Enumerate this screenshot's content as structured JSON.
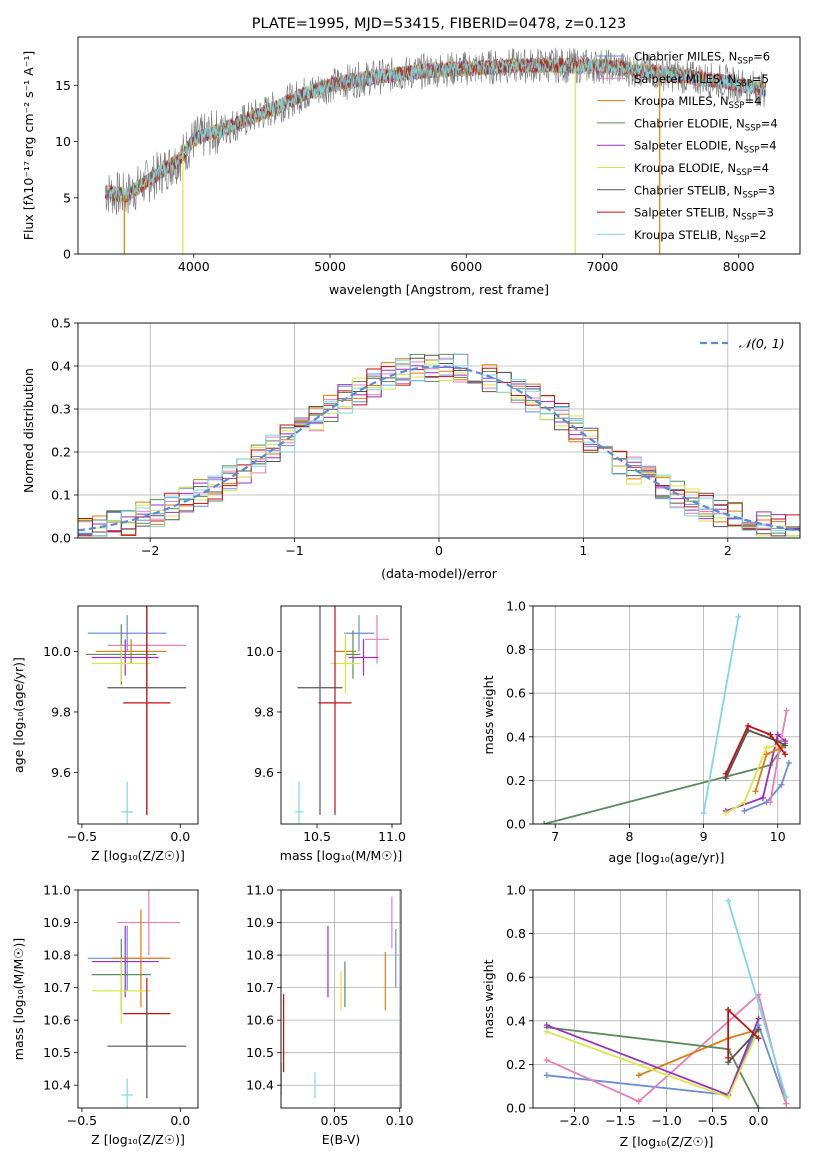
{
  "chart_data": [
    {
      "id": "spectrum",
      "type": "line",
      "title": "PLATE=1995, MJD=53415, FIBERID=0478, z=0.123",
      "xlabel": "wavelength [Angstrom, rest frame]",
      "ylabel": "Flux [fλ10⁻¹⁷ erg cm⁻² s⁻¹ A⁻¹]",
      "xlim": [
        3150,
        8450
      ],
      "ylim": [
        0,
        19.3
      ],
      "xticks": [
        4000,
        5000,
        6000,
        7000,
        8000
      ],
      "yticks": [
        0,
        5,
        10,
        15
      ],
      "grid": false,
      "legend_position": "top-right",
      "spectrum_range": [
        3350,
        8200
      ],
      "continuum": {
        "x": [
          3350,
          3500,
          3700,
          3900,
          4000,
          4200,
          4400,
          4600,
          4800,
          5000,
          5200,
          5500,
          5800,
          6000,
          6300,
          6600,
          7000,
          7300,
          7600,
          7900,
          8200
        ],
        "y": [
          5.5,
          5.2,
          6.8,
          8.5,
          10.2,
          11.0,
          12.0,
          13.0,
          14.2,
          15.0,
          15.5,
          16.0,
          16.4,
          16.5,
          16.7,
          16.8,
          16.7,
          16.3,
          15.8,
          15.3,
          14.6
        ]
      },
      "series": [
        {
          "label": "Chabrier MILES, N_SSP=6",
          "color": "#6b8fd6"
        },
        {
          "label": "Salpeter MILES, N_SSP=5",
          "color": "#e87fb5"
        },
        {
          "label": "Kroupa MILES, N_SSP=4",
          "color": "#e07d10"
        },
        {
          "label": "Chabrier ELODIE, N_SSP=4",
          "color": "#5c8a5c"
        },
        {
          "label": "Salpeter ELODIE, N_SSP=4",
          "color": "#9b30c0"
        },
        {
          "label": "Kroupa ELODIE, N_SSP=4",
          "color": "#d8e84a"
        },
        {
          "label": "Chabrier STELIB, N_SSP=3",
          "color": "#555555"
        },
        {
          "label": "Salpeter STELIB, N_SSP=3",
          "color": "#c01010"
        },
        {
          "label": "Kroupa STELIB, N_SSP=2",
          "color": "#7fd8e0"
        }
      ],
      "legend": [
        {
          "pre": "Chabrier MILES, N",
          "sub": "SSP",
          "post": "=6"
        },
        {
          "pre": "Salpeter MILES, N",
          "sub": "SSP",
          "post": "=5"
        },
        {
          "pre": "Kroupa MILES, N",
          "sub": "SSP",
          "post": "=4"
        },
        {
          "pre": "Chabrier ELODIE, N",
          "sub": "SSP",
          "post": "=4"
        },
        {
          "pre": "Salpeter ELODIE, N",
          "sub": "SSP",
          "post": "=4"
        },
        {
          "pre": "Kroupa ELODIE, N",
          "sub": "SSP",
          "post": "=4"
        },
        {
          "pre": "Chabrier STELIB, N",
          "sub": "SSP",
          "post": "=3"
        },
        {
          "pre": "Salpeter STELIB, N",
          "sub": "SSP",
          "post": "=3"
        },
        {
          "pre": "Kroupa STELIB, N",
          "sub": "SSP",
          "post": "=2"
        }
      ],
      "dropouts": [
        {
          "x": 3490,
          "color": "#e07d10"
        },
        {
          "x": 3920,
          "color": "#d8e84a"
        },
        {
          "x": 6800,
          "color": "#d8e84a"
        },
        {
          "x": 7420,
          "color": "#e07d10"
        }
      ]
    },
    {
      "id": "residuals",
      "type": "histogram",
      "xlabel": "(data-model)/error",
      "ylabel": "Normed distribution",
      "xlim": [
        -2.5,
        2.5
      ],
      "ylim": [
        0,
        0.5
      ],
      "xticks": [
        -2,
        -1,
        0,
        1,
        2
      ],
      "xticklabels": [
        "−2",
        "−1",
        "0",
        "1",
        "2"
      ],
      "yticks": [
        0.0,
        0.1,
        0.2,
        0.3,
        0.4,
        0.5
      ],
      "yticklabels": [
        "0.0",
        "0.1",
        "0.2",
        "0.3",
        "0.4",
        "0.5"
      ],
      "grid": true,
      "bin_width": 0.1,
      "reference_curve": {
        "label": "𝒩(0, 1)",
        "color": "#5b8bd8",
        "style": "dashed"
      },
      "legend_position": "top-right"
    },
    {
      "id": "age-vs-Z",
      "type": "errorbar",
      "xlabel": "Z [log₁₀(Z/Z☉)]",
      "ylabel": "age  [log₁₀(age/yr)]",
      "xlim": [
        -0.52,
        0.09
      ],
      "ylim": [
        9.43,
        10.15
      ],
      "xticks": [
        -0.5,
        0.0
      ],
      "xticklabels": [
        "−0.5",
        "0.0"
      ],
      "yticks": [
        9.6,
        9.8,
        10.0
      ],
      "yticklabels": [
        "9.6",
        "9.8",
        "10.0"
      ],
      "points": [
        {
          "color": "#6b8fd6",
          "x": -0.27,
          "xerr": 0.2,
          "y": 10.06,
          "yerr": 0.06
        },
        {
          "color": "#e87fb5",
          "x": -0.17,
          "xerr": 0.2,
          "y": 10.02,
          "yerr": 0.08
        },
        {
          "color": "#e07d10",
          "x": -0.25,
          "xerr": 0.18,
          "y": 10.0,
          "yerr": 0.04
        },
        {
          "color": "#5c8a5c",
          "x": -0.3,
          "xerr": 0.18,
          "y": 9.99,
          "yerr": 0.1
        },
        {
          "color": "#9b30c0",
          "x": -0.28,
          "xerr": 0.17,
          "y": 9.98,
          "yerr": 0.06
        },
        {
          "color": "#d8e84a",
          "x": -0.3,
          "xerr": 0.15,
          "y": 9.96,
          "yerr": 0.06
        },
        {
          "color": "#555555",
          "x": -0.17,
          "xerr": 0.2,
          "y": 9.88,
          "yerr": 0.42
        },
        {
          "color": "#c01010",
          "x": -0.17,
          "xerr": 0.12,
          "y": 9.83,
          "yerr": 0.37
        },
        {
          "color": "#7fd8e0",
          "x": -0.27,
          "xerr": 0.03,
          "y": 9.47,
          "yerr": 0.1
        }
      ]
    },
    {
      "id": "age-vs-mass",
      "type": "errorbar",
      "xlabel": "mass [log₁₀(M/M☉)]",
      "ylabel": "",
      "xlim": [
        10.26,
        11.06
      ],
      "ylim": [
        9.43,
        10.15
      ],
      "xticks": [
        10.5,
        11.0
      ],
      "xticklabels": [
        "10.5",
        "11.0"
      ],
      "yticks": [
        9.6,
        9.8,
        10.0
      ],
      "yticklabels": [
        "9.6",
        "9.8",
        "10.0"
      ],
      "points": [
        {
          "color": "#6b8fd6",
          "x": 10.78,
          "xerr": 0.1,
          "y": 10.06,
          "yerr": 0.06
        },
        {
          "color": "#e87fb5",
          "x": 10.9,
          "xerr": 0.08,
          "y": 10.04,
          "yerr": 0.08
        },
        {
          "color": "#e07d10",
          "x": 10.69,
          "xerr": 0.07,
          "y": 10.0,
          "yerr": 0.04
        },
        {
          "color": "#5c8a5c",
          "x": 10.74,
          "xerr": 0.05,
          "y": 9.99,
          "yerr": 0.08
        },
        {
          "color": "#9b30c0",
          "x": 10.81,
          "xerr": 0.1,
          "y": 9.98,
          "yerr": 0.06
        },
        {
          "color": "#d8e84a",
          "x": 10.69,
          "xerr": 0.1,
          "y": 9.96,
          "yerr": 0.1
        },
        {
          "color": "#555555",
          "x": 10.52,
          "xerr": 0.15,
          "y": 9.88,
          "yerr": 0.42
        },
        {
          "color": "#c01010",
          "x": 10.62,
          "xerr": 0.11,
          "y": 9.83,
          "yerr": 0.37
        },
        {
          "color": "#7fd8e0",
          "x": 10.38,
          "xerr": 0.03,
          "y": 9.47,
          "yerr": 0.1
        }
      ]
    },
    {
      "id": "weight-vs-age",
      "type": "line",
      "xlabel": "age  [log₁₀(age/yr)]",
      "ylabel": "mass weight",
      "xlim": [
        6.7,
        10.3
      ],
      "ylim": [
        0.0,
        1.0
      ],
      "xticks": [
        7,
        8,
        9,
        10
      ],
      "xticklabels": [
        "7",
        "8",
        "9",
        "10"
      ],
      "yticks": [
        0.0,
        0.2,
        0.4,
        0.6,
        0.8,
        1.0
      ],
      "yticklabels": [
        "0.0",
        "0.2",
        "0.4",
        "0.6",
        "0.8",
        "1.0"
      ],
      "grid": true,
      "series": [
        {
          "color": "#5c8a5c",
          "x": [
            6.85,
            9.9,
            10.1
          ],
          "y": [
            0.0,
            0.27,
            0.37
          ]
        },
        {
          "color": "#7fd8e0",
          "x": [
            9.0,
            9.47
          ],
          "y": [
            0.05,
            0.95
          ]
        },
        {
          "color": "#9b30c0",
          "x": [
            9.3,
            9.8,
            10.0,
            10.1
          ],
          "y": [
            0.06,
            0.12,
            0.41,
            0.38
          ]
        },
        {
          "color": "#d8e84a",
          "x": [
            9.3,
            9.55,
            9.85,
            10.0
          ],
          "y": [
            0.05,
            0.1,
            0.35,
            0.36
          ]
        },
        {
          "color": "#6b8fd6",
          "x": [
            9.55,
            9.85,
            10.05,
            10.15
          ],
          "y": [
            0.06,
            0.1,
            0.18,
            0.28
          ]
        },
        {
          "color": "#e87fb5",
          "x": [
            9.9,
            10.0,
            10.12
          ],
          "y": [
            0.1,
            0.3,
            0.52
          ]
        },
        {
          "color": "#e07d10",
          "x": [
            9.7,
            9.85,
            10.05
          ],
          "y": [
            0.15,
            0.32,
            0.35
          ]
        },
        {
          "color": "#555555",
          "x": [
            9.3,
            9.6,
            10.0,
            10.1
          ],
          "y": [
            0.21,
            0.43,
            0.38,
            0.36
          ]
        },
        {
          "color": "#c01010",
          "x": [
            9.3,
            9.6,
            9.9,
            10.1
          ],
          "y": [
            0.23,
            0.45,
            0.41,
            0.32
          ]
        }
      ]
    },
    {
      "id": "mass-vs-Z",
      "type": "errorbar",
      "xlabel": "Z [log₁₀(Z/Z☉)]",
      "ylabel": "mass [log₁₀(M/M☉)]",
      "xlim": [
        -0.52,
        0.09
      ],
      "ylim": [
        10.33,
        11.0
      ],
      "xticks": [
        -0.5,
        0.0
      ],
      "xticklabels": [
        "−0.5",
        "0.0"
      ],
      "yticks": [
        10.4,
        10.5,
        10.6,
        10.7,
        10.8,
        10.9,
        11.0
      ],
      "yticklabels": [
        "10.4",
        "10.5",
        "10.6",
        "10.7",
        "10.8",
        "10.9",
        "11.0"
      ],
      "points": [
        {
          "color": "#e87fb5",
          "x": -0.16,
          "xerr": 0.16,
          "y": 10.9,
          "yerr": 0.1
        },
        {
          "color": "#6b8fd6",
          "x": -0.27,
          "xerr": 0.2,
          "y": 10.79,
          "yerr": 0.1
        },
        {
          "color": "#e07d10",
          "x": -0.2,
          "xerr": 0.15,
          "y": 10.79,
          "yerr": 0.15
        },
        {
          "color": "#9b30c0",
          "x": -0.28,
          "xerr": 0.17,
          "y": 10.78,
          "yerr": 0.11
        },
        {
          "color": "#5c8a5c",
          "x": -0.3,
          "xerr": 0.15,
          "y": 10.74,
          "yerr": 0.11
        },
        {
          "color": "#d8e84a",
          "x": -0.3,
          "xerr": 0.15,
          "y": 10.69,
          "yerr": 0.1
        },
        {
          "color": "#c01010",
          "x": -0.17,
          "xerr": 0.12,
          "y": 10.62,
          "yerr": 0.11
        },
        {
          "color": "#555555",
          "x": -0.17,
          "xerr": 0.2,
          "y": 10.52,
          "yerr": 0.16
        },
        {
          "color": "#7fd8e0",
          "x": -0.27,
          "xerr": 0.03,
          "y": 10.37,
          "yerr": 0.05
        }
      ]
    },
    {
      "id": "mass-vs-ebv",
      "type": "errorbar",
      "xlabel": "E(B-V)",
      "ylabel": "",
      "xlim": [
        0.009,
        0.101
      ],
      "ylim": [
        10.33,
        11.0
      ],
      "xticks": [
        0.05,
        0.1
      ],
      "xticklabels": [
        "0.05",
        "0.10"
      ],
      "yticks": [
        10.4,
        10.5,
        10.6,
        10.7,
        10.8,
        10.9,
        11.0
      ],
      "yticklabels": [
        "10.4",
        "10.5",
        "10.6",
        "10.7",
        "10.8",
        "10.9",
        "11.0"
      ],
      "grid": true,
      "points": [
        {
          "color": "#e87fb5",
          "x": 0.094,
          "y": 10.9,
          "yerr": 0.08
        },
        {
          "color": "#6b8fd6",
          "x": 0.097,
          "y": 10.79,
          "yerr": 0.09
        },
        {
          "color": "#e07d10",
          "x": 0.089,
          "y": 10.72,
          "yerr": 0.09
        },
        {
          "color": "#9b30c0",
          "x": 0.045,
          "y": 10.78,
          "yerr": 0.11
        },
        {
          "color": "#5c8a5c",
          "x": 0.058,
          "y": 10.71,
          "yerr": 0.07
        },
        {
          "color": "#d8e84a",
          "x": 0.055,
          "y": 10.69,
          "yerr": 0.06
        },
        {
          "color": "#c01010",
          "x": 0.011,
          "y": 10.56,
          "yerr": 0.12
        },
        {
          "color": "#555555",
          "x": 0.009,
          "y": 10.42,
          "yerr": 0.05
        },
        {
          "color": "#7fd8e0",
          "x": 0.035,
          "y": 10.4,
          "yerr": 0.04
        }
      ]
    },
    {
      "id": "weight-vs-Z",
      "type": "line",
      "xlabel": "Z [log₁₀(Z/Z☉)]",
      "ylabel": "mass weight",
      "xlim": [
        -2.45,
        0.45
      ],
      "ylim": [
        0.0,
        1.0
      ],
      "xticks": [
        -2.0,
        -1.5,
        -1.0,
        -0.5,
        0.0
      ],
      "xticklabels": [
        "−2.0",
        "−1.5",
        "−1.0",
        "−0.5",
        "0.0"
      ],
      "yticks": [
        0.0,
        0.2,
        0.4,
        0.6,
        0.8,
        1.0
      ],
      "yticklabels": [
        "0.0",
        "0.2",
        "0.4",
        "0.6",
        "0.8",
        "1.0"
      ],
      "grid": true,
      "series": [
        {
          "color": "#6b8fd6",
          "x": [
            -2.3,
            -0.33,
            0.0,
            0.3
          ],
          "y": [
            0.15,
            0.06,
            0.38,
            0.02
          ]
        },
        {
          "color": "#e87fb5",
          "x": [
            -2.3,
            -1.3,
            0.0,
            0.3
          ],
          "y": [
            0.22,
            0.03,
            0.52,
            0.02
          ]
        },
        {
          "color": "#e07d10",
          "x": [
            -1.3,
            -0.33,
            0.0
          ],
          "y": [
            0.15,
            0.32,
            0.36
          ]
        },
        {
          "color": "#5c8a5c",
          "x": [
            -2.3,
            -0.33,
            0.0
          ],
          "y": [
            0.37,
            0.27,
            0.0
          ]
        },
        {
          "color": "#9b30c0",
          "x": [
            -2.3,
            -0.33,
            0.0
          ],
          "y": [
            0.38,
            0.06,
            0.41
          ]
        },
        {
          "color": "#d8e84a",
          "x": [
            -2.3,
            -0.33,
            0.0
          ],
          "y": [
            0.35,
            0.05,
            0.36
          ]
        },
        {
          "color": "#555555",
          "x": [
            -0.33,
            0.0
          ],
          "y": [
            0.21,
            0.36
          ]
        },
        {
          "color": "#c01010",
          "x": [
            -0.33,
            -0.33,
            0.0
          ],
          "y": [
            0.23,
            0.45,
            0.32
          ]
        },
        {
          "color": "#7fd8e0",
          "x": [
            -0.33,
            0.3
          ],
          "y": [
            0.95,
            0.05
          ]
        }
      ]
    }
  ]
}
